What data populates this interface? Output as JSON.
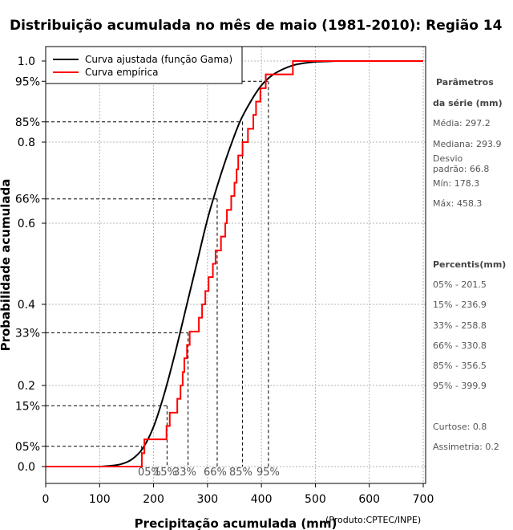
{
  "chart_data": {
    "type": "line",
    "title": "Distribuição acumulada no mês de maio (1981-2010): Região 14",
    "xlabel": "Precipitação acumulada (mm)",
    "ylabel": "Probabilidade acumulada",
    "credit": "(Produto:CPTEC/INPE)",
    "xlim": [
      0,
      700
    ],
    "ylim": [
      0,
      1.0
    ],
    "x_ticks": [
      0,
      100,
      200,
      300,
      400,
      500,
      600,
      700
    ],
    "x_tick_labels": [
      "0",
      "100",
      "200",
      "300",
      "400",
      "500",
      "600",
      "700"
    ],
    "y_ticks": [
      0.0,
      0.2,
      0.4,
      0.6,
      0.8,
      1.0
    ],
    "y_tick_labels": [
      "0.0",
      "0.2",
      "0.4",
      "0.6",
      "0.8",
      "1.0"
    ],
    "y_percent_ticks": [
      0.05,
      0.15,
      0.33,
      0.66,
      0.85,
      0.95
    ],
    "y_percent_labels": [
      "05%",
      "15%",
      "33%",
      "66%",
      "85%",
      "95%"
    ],
    "grid": true,
    "legend_position": "top-left",
    "series": [
      {
        "name": "Curva ajustada (função Gama)",
        "color": "#000000",
        "kind": "gamma_cdf",
        "x": [
          100,
          120,
          140,
          160,
          180,
          200,
          220,
          240,
          260,
          280,
          300,
          320,
          340,
          360,
          380,
          400,
          420,
          440,
          460,
          480,
          500,
          520,
          540,
          570
        ],
        "y": [
          0.0,
          0.002,
          0.006,
          0.018,
          0.045,
          0.098,
          0.18,
          0.28,
          0.39,
          0.5,
          0.61,
          0.7,
          0.78,
          0.85,
          0.9,
          0.94,
          0.965,
          0.98,
          0.99,
          0.995,
          0.998,
          0.999,
          1.0,
          1.0
        ]
      },
      {
        "name": "Curva empírica",
        "color": "#ff0000",
        "kind": "step",
        "x": [
          0,
          178.3,
          183,
          224,
          230,
          244,
          250,
          254,
          257,
          262,
          267,
          284,
          290,
          296,
          302,
          310,
          315,
          325,
          333,
          336,
          344,
          350,
          354,
          357,
          365,
          375,
          385,
          390,
          398,
          408,
          458.3,
          700
        ],
        "y": [
          0.0,
          0.033,
          0.067,
          0.1,
          0.133,
          0.167,
          0.2,
          0.233,
          0.267,
          0.3,
          0.333,
          0.367,
          0.4,
          0.433,
          0.467,
          0.5,
          0.533,
          0.567,
          0.6,
          0.633,
          0.667,
          0.7,
          0.733,
          0.767,
          0.8,
          0.833,
          0.867,
          0.9,
          0.933,
          0.967,
          1.0,
          1.0
        ]
      }
    ],
    "percentile_guides": [
      {
        "label": "05%",
        "p": 0.05,
        "x": 178
      },
      {
        "label": "15%",
        "p": 0.15,
        "x": 225
      },
      {
        "label": "33%",
        "p": 0.33,
        "x": 264
      },
      {
        "label": "66%",
        "p": 0.66,
        "x": 318
      },
      {
        "label": "85%",
        "p": 0.85,
        "x": 365
      },
      {
        "label": "95%",
        "p": 0.95,
        "x": 413
      }
    ],
    "percentile_axis_labels": [
      "05%",
      "15%",
      "33%",
      "66%",
      "85%",
      "95%"
    ]
  },
  "side_panel": {
    "params_heading_1": "Parâmetros",
    "params_heading_2": "da série (mm)",
    "media": "Média: 297.2",
    "mediana": "Mediana: 293.9",
    "desvio_1": "Desvio",
    "desvio_2": "padrão: 66.8",
    "min": "Mín: 178.3",
    "max": "Máx: 458.3",
    "percentis_heading": "Percentis(mm)",
    "p05": "05% - 201.5",
    "p15": "15% - 236.9",
    "p33": "33% - 258.8",
    "p66": "66% - 330.8",
    "p85": "85% - 356.5",
    "p95": "95% - 399.9",
    "curtose": "Curtose: 0.8",
    "assimetria": "Assimetria: 0.2"
  }
}
